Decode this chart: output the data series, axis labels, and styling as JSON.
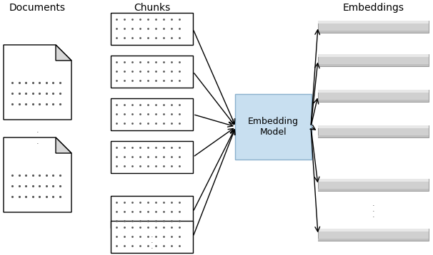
{
  "title_documents": "Documents",
  "title_chunks": "Chunks",
  "title_embeddings": "Embeddings",
  "embedding_model_label": "Embedding\nModel",
  "bg_color": "#ffffff",
  "doc_color": "#ffffff",
  "doc_fold_color": "#d8d8d8",
  "doc_border": "#000000",
  "chunk_bg": "#ffffff",
  "chunk_border": "#000000",
  "embed_box_bg": "#c8dff0",
  "embed_box_border": "#8ab0cc",
  "bar_top": "#e8e8e8",
  "bar_mid": "#d0d0d0",
  "bar_bot": "#c0c0c0",
  "bar_edge": "#999999",
  "arrow_color": "#000000",
  "dots_color": "#555555",
  "figsize": [
    6.06,
    3.58
  ],
  "dpi": 100
}
